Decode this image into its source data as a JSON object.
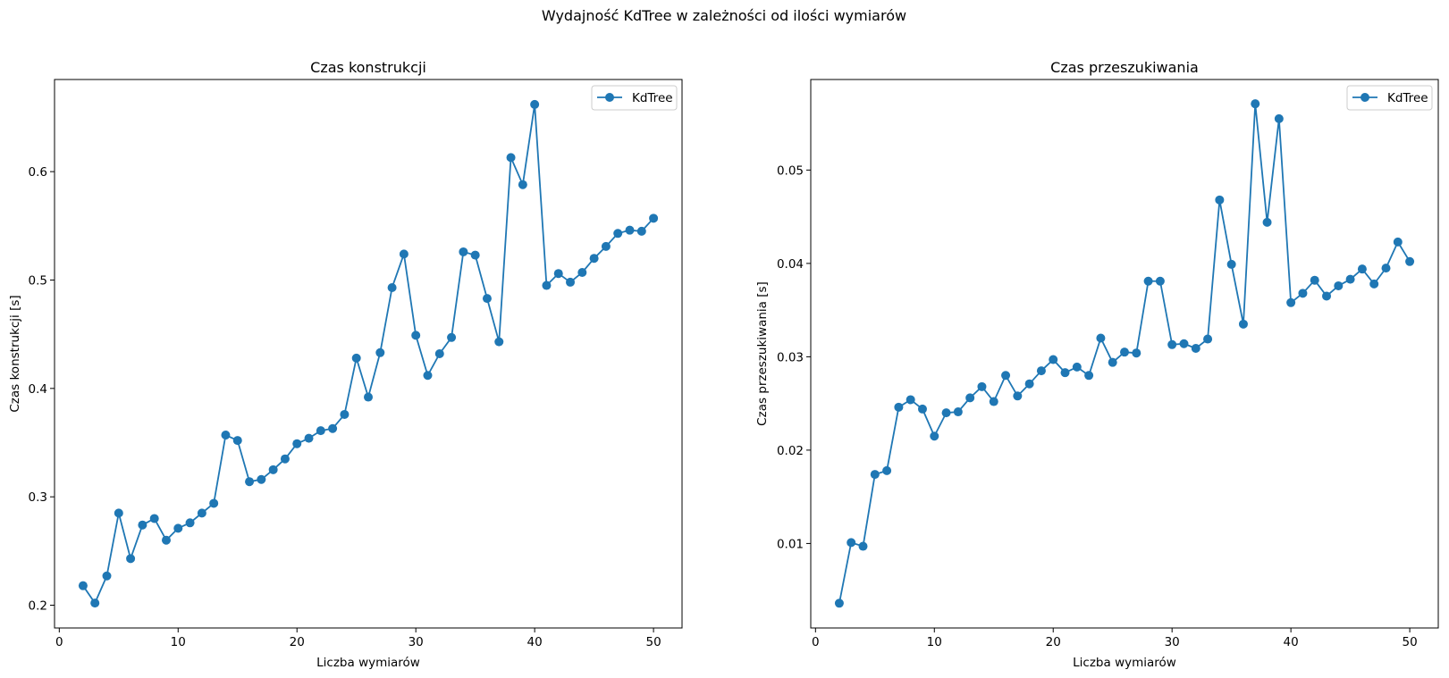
{
  "suptitle": "Wydajność KdTree w zależności od ilości wymiarów",
  "colors": {
    "series": "#1f77b4",
    "axes": "#000000",
    "legend_border": "#cccccc"
  },
  "chart_data": [
    {
      "type": "line",
      "title": "Czas konstrukcji",
      "xlabel": "Liczba wymiarów",
      "ylabel": "Czas konstrukcji [s]",
      "xlim": [
        -0.4,
        52.4
      ],
      "ylim": [
        0.179,
        0.685
      ],
      "xticks": [
        0,
        10,
        20,
        30,
        40,
        50
      ],
      "xtick_labels": [
        "0",
        "10",
        "20",
        "30",
        "40",
        "50"
      ],
      "yticks": [
        0.2,
        0.3,
        0.4,
        0.5,
        0.6
      ],
      "ytick_labels": [
        "0.2",
        "0.3",
        "0.4",
        "0.5",
        "0.6"
      ],
      "legend": "top-right",
      "grid": false,
      "series": [
        {
          "name": "KdTree",
          "marker": "circle",
          "x": [
            2,
            3,
            4,
            5,
            6,
            7,
            8,
            9,
            10,
            11,
            12,
            13,
            14,
            15,
            16,
            17,
            18,
            19,
            20,
            21,
            22,
            23,
            24,
            25,
            26,
            27,
            28,
            29,
            30,
            31,
            32,
            33,
            34,
            35,
            36,
            37,
            38,
            39,
            40,
            41,
            42,
            43,
            44,
            45,
            46,
            47,
            48,
            49,
            50
          ],
          "y": [
            0.218,
            0.202,
            0.227,
            0.285,
            0.243,
            0.274,
            0.28,
            0.26,
            0.271,
            0.276,
            0.285,
            0.294,
            0.357,
            0.352,
            0.314,
            0.316,
            0.325,
            0.335,
            0.349,
            0.354,
            0.361,
            0.363,
            0.376,
            0.428,
            0.392,
            0.433,
            0.493,
            0.524,
            0.449,
            0.412,
            0.432,
            0.447,
            0.526,
            0.523,
            0.483,
            0.443,
            0.613,
            0.588,
            0.662,
            0.495,
            0.506,
            0.498,
            0.507,
            0.52,
            0.531,
            0.543,
            0.546,
            0.545,
            0.557
          ]
        }
      ]
    },
    {
      "type": "line",
      "title": "Czas przeszukiwania",
      "xlabel": "Liczba wymiarów",
      "ylabel": "Czas przeszukiwania [s]",
      "xlim": [
        -0.4,
        52.4
      ],
      "ylim": [
        0.00095,
        0.0597
      ],
      "xticks": [
        0,
        10,
        20,
        30,
        40,
        50
      ],
      "xtick_labels": [
        "0",
        "10",
        "20",
        "30",
        "40",
        "50"
      ],
      "yticks": [
        0.01,
        0.02,
        0.03,
        0.04,
        0.05
      ],
      "ytick_labels": [
        "0.01",
        "0.02",
        "0.03",
        "0.04",
        "0.05"
      ],
      "legend": "top-right",
      "grid": false,
      "series": [
        {
          "name": "KdTree",
          "marker": "circle",
          "x": [
            2,
            3,
            4,
            5,
            6,
            7,
            8,
            9,
            10,
            11,
            12,
            13,
            14,
            15,
            16,
            17,
            18,
            19,
            20,
            21,
            22,
            23,
            24,
            25,
            26,
            27,
            28,
            29,
            30,
            31,
            32,
            33,
            34,
            35,
            36,
            37,
            38,
            39,
            40,
            41,
            42,
            43,
            44,
            45,
            46,
            47,
            48,
            49,
            50
          ],
          "y": [
            0.0036,
            0.0101,
            0.0097,
            0.0174,
            0.0178,
            0.0246,
            0.0254,
            0.0244,
            0.0215,
            0.024,
            0.0241,
            0.0256,
            0.0268,
            0.0252,
            0.028,
            0.0258,
            0.0271,
            0.0285,
            0.0297,
            0.0283,
            0.0289,
            0.028,
            0.032,
            0.0294,
            0.0305,
            0.0304,
            0.0381,
            0.0381,
            0.0313,
            0.0314,
            0.0309,
            0.0319,
            0.0468,
            0.0399,
            0.0335,
            0.0571,
            0.0444,
            0.0555,
            0.0358,
            0.0368,
            0.0382,
            0.0365,
            0.0376,
            0.0383,
            0.0394,
            0.0378,
            0.0395,
            0.0423,
            0.0402
          ]
        }
      ]
    }
  ]
}
